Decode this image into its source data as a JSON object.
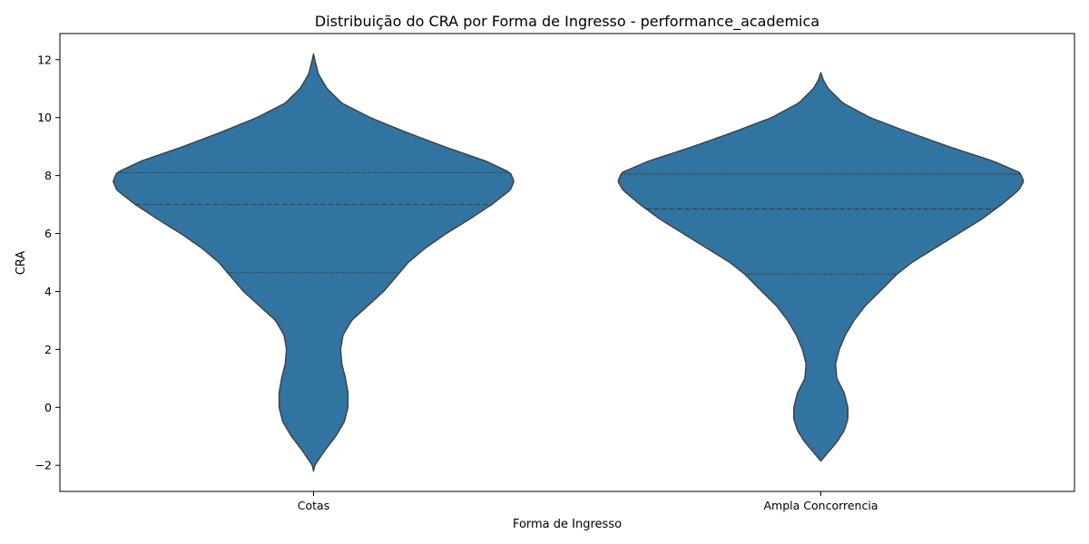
{
  "chart_data": {
    "type": "violin",
    "title": "Distribuição do CRA por Forma de Ingresso - performance_academica",
    "xlabel": "Forma de Ingresso",
    "ylabel": "CRA",
    "ylim": [
      -2.9,
      12.9
    ],
    "yticks": [
      -2,
      0,
      2,
      4,
      6,
      8,
      10,
      12
    ],
    "ytick_labels": [
      "−2",
      "0",
      "2",
      "4",
      "6",
      "8",
      "10",
      "12"
    ],
    "categories": [
      "Cotas",
      "Ampla Concorrencia"
    ],
    "grid": false,
    "colors": {
      "violin_fill": "#3274a1",
      "violin_edge": "#3f3f3f",
      "quartile_line": "#3f3f3f"
    },
    "violins": [
      {
        "category": "Cotas",
        "min": -2.2,
        "max": 12.2,
        "quartiles": [
          4.65,
          7.0,
          8.1
        ],
        "density_profile": [
          [
            -2.2,
            0.0
          ],
          [
            -2.0,
            0.01
          ],
          [
            -1.5,
            0.09
          ],
          [
            -1.0,
            0.18
          ],
          [
            -0.5,
            0.25
          ],
          [
            0.0,
            0.28
          ],
          [
            0.5,
            0.28
          ],
          [
            1.0,
            0.26
          ],
          [
            1.5,
            0.23
          ],
          [
            2.0,
            0.22
          ],
          [
            2.5,
            0.24
          ],
          [
            3.0,
            0.31
          ],
          [
            3.5,
            0.44
          ],
          [
            4.0,
            0.57
          ],
          [
            4.65,
            0.7
          ],
          [
            5.0,
            0.77
          ],
          [
            5.5,
            0.91
          ],
          [
            6.0,
            1.08
          ],
          [
            6.5,
            1.27
          ],
          [
            7.0,
            1.45
          ],
          [
            7.5,
            1.6
          ],
          [
            7.8,
            1.63
          ],
          [
            8.1,
            1.6
          ],
          [
            8.5,
            1.4
          ],
          [
            9.0,
            1.06
          ],
          [
            9.5,
            0.75
          ],
          [
            10.0,
            0.46
          ],
          [
            10.5,
            0.23
          ],
          [
            11.0,
            0.11
          ],
          [
            11.5,
            0.04
          ],
          [
            12.0,
            0.01
          ],
          [
            12.2,
            0.0
          ]
        ]
      },
      {
        "category": "Ampla Concorrencia",
        "min": -1.85,
        "max": 11.55,
        "quartiles": [
          4.6,
          6.85,
          8.05
        ],
        "density_profile": [
          [
            -1.85,
            0.0
          ],
          [
            -1.6,
            0.05
          ],
          [
            -1.2,
            0.13
          ],
          [
            -0.8,
            0.19
          ],
          [
            -0.4,
            0.22
          ],
          [
            0.0,
            0.22
          ],
          [
            0.5,
            0.19
          ],
          [
            1.0,
            0.13
          ],
          [
            1.5,
            0.12
          ],
          [
            2.0,
            0.15
          ],
          [
            2.5,
            0.2
          ],
          [
            3.0,
            0.27
          ],
          [
            3.5,
            0.36
          ],
          [
            4.0,
            0.48
          ],
          [
            4.6,
            0.62
          ],
          [
            5.0,
            0.74
          ],
          [
            5.5,
            0.93
          ],
          [
            6.0,
            1.12
          ],
          [
            6.5,
            1.31
          ],
          [
            7.0,
            1.47
          ],
          [
            7.5,
            1.61
          ],
          [
            7.8,
            1.65
          ],
          [
            8.1,
            1.62
          ],
          [
            8.5,
            1.4
          ],
          [
            9.0,
            1.04
          ],
          [
            9.5,
            0.71
          ],
          [
            10.0,
            0.4
          ],
          [
            10.5,
            0.18
          ],
          [
            11.0,
            0.06
          ],
          [
            11.3,
            0.02
          ],
          [
            11.55,
            0.0
          ]
        ]
      }
    ]
  }
}
